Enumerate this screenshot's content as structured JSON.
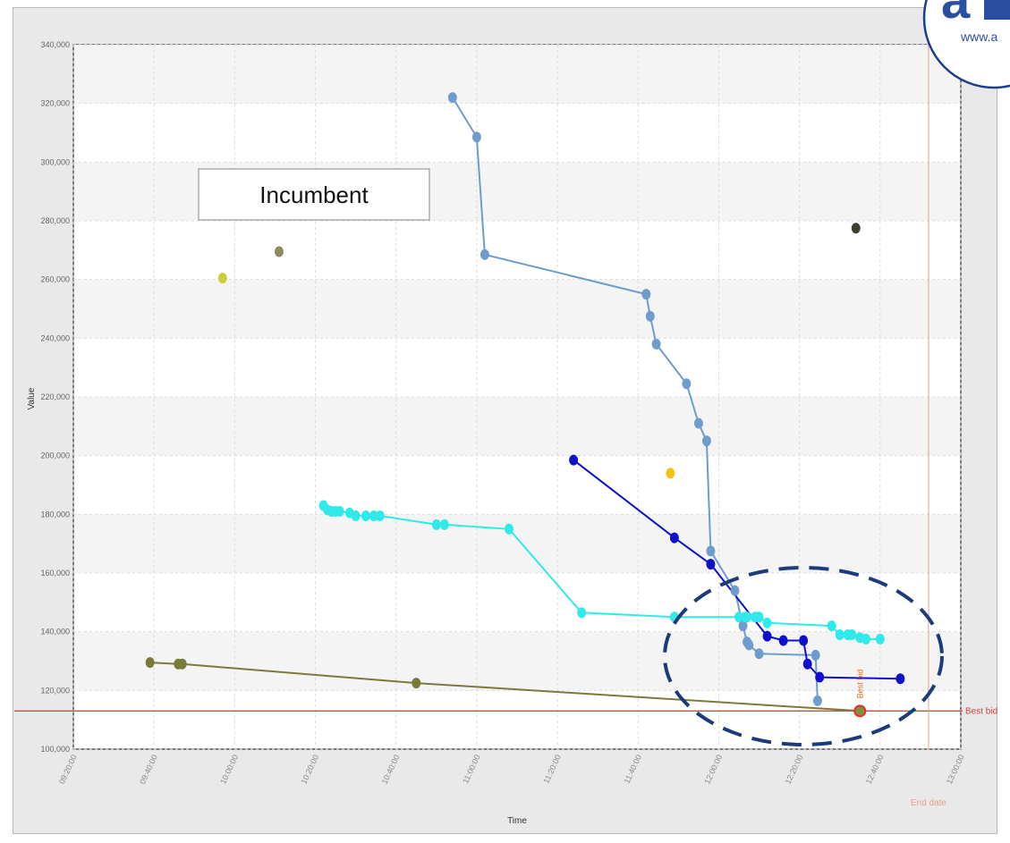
{
  "chart_data": {
    "type": "scatter",
    "xlabel": "Time",
    "ylabel": "Value",
    "ylim": [
      100000,
      340000
    ],
    "xlim": [
      "09:20:00",
      "13:00:00"
    ],
    "x_ticks": [
      "09:20:00",
      "09:40:00",
      "10:00:00",
      "10:20:00",
      "10:40:00",
      "11:00:00",
      "11:20:00",
      "11:40:00",
      "12:00:00",
      "12:20:00",
      "12:40:00",
      "13:00:00"
    ],
    "y_ticks": [
      "100,000",
      "120,000",
      "140,000",
      "160,000",
      "180,000",
      "200,000",
      "220,000",
      "240,000",
      "260,000",
      "280,000",
      "300,000",
      "320,000",
      "340,000"
    ],
    "y_tick_values": [
      100000,
      120000,
      140000,
      160000,
      180000,
      200000,
      220000,
      240000,
      260000,
      280000,
      300000,
      320000,
      340000
    ],
    "grid": true,
    "best_bid": {
      "label": "Best bid",
      "value": 113000,
      "color": "#e04040"
    },
    "end_date": {
      "label": "End date",
      "time": "12:52:00",
      "color": "#e3a090"
    },
    "best_bid_marker": {
      "label": "Best bid",
      "time": "12:35:00",
      "value": 113000
    },
    "series": [
      {
        "color": "#6f9ccd",
        "points": [
          [
            "10:54:00",
            322000
          ],
          [
            "11:00:00",
            308500
          ],
          [
            "11:02:00",
            268500
          ],
          [
            "11:42:00",
            255000
          ],
          [
            "11:43:00",
            247500
          ],
          [
            "11:44:30",
            238000
          ],
          [
            "11:52:00",
            224500
          ],
          [
            "11:55:00",
            211000
          ],
          [
            "11:57:00",
            205000
          ],
          [
            "11:58:00",
            167500
          ],
          [
            "12:04:00",
            154000
          ],
          [
            "12:06:00",
            142000
          ],
          [
            "12:07:00",
            136500
          ],
          [
            "12:07:30",
            135500
          ],
          [
            "12:10:00",
            132500
          ],
          [
            "12:24:00",
            132000
          ],
          [
            "12:24:30",
            116500
          ]
        ]
      },
      {
        "color": "#1010cc",
        "points": [
          [
            "11:24:00",
            198500
          ],
          [
            "11:49:00",
            172000
          ],
          [
            "11:58:00",
            163000
          ],
          [
            "12:12:00",
            138500
          ],
          [
            "12:16:00",
            137000
          ],
          [
            "12:21:00",
            137000
          ],
          [
            "12:22:00",
            129000
          ],
          [
            "12:25:00",
            124500
          ],
          [
            "12:45:00",
            124000
          ]
        ]
      },
      {
        "color": "#30eaea",
        "points": [
          [
            "10:22:00",
            183000
          ],
          [
            "10:23:00",
            181500
          ],
          [
            "10:24:00",
            181000
          ],
          [
            "10:25:00",
            181000
          ],
          [
            "10:26:00",
            181000
          ],
          [
            "10:28:30",
            180500
          ],
          [
            "10:30:00",
            179500
          ],
          [
            "10:32:30",
            179500
          ],
          [
            "10:34:30",
            179500
          ],
          [
            "10:36:00",
            179500
          ],
          [
            "10:50:00",
            176500
          ],
          [
            "10:52:00",
            176500
          ],
          [
            "11:08:00",
            175000
          ],
          [
            "11:26:00",
            146500
          ],
          [
            "11:49:00",
            145000
          ],
          [
            "12:05:00",
            145000
          ],
          [
            "12:06:30",
            145000
          ],
          [
            "12:07:00",
            145000
          ],
          [
            "12:09:00",
            145000
          ],
          [
            "12:10:00",
            145000
          ],
          [
            "12:12:00",
            143000
          ],
          [
            "12:28:00",
            142000
          ],
          [
            "12:30:00",
            139000
          ],
          [
            "12:32:00",
            139000
          ],
          [
            "12:33:00",
            139000
          ],
          [
            "12:35:00",
            138000
          ],
          [
            "12:36:30",
            137500
          ],
          [
            "12:40:00",
            137500
          ]
        ]
      },
      {
        "color": "#7a7a3c",
        "points": [
          [
            "09:39:00",
            129500
          ],
          [
            "09:46:00",
            129000
          ],
          [
            "09:47:00",
            129000
          ],
          [
            "10:45:00",
            122500
          ],
          [
            "12:35:00",
            113000
          ]
        ]
      }
    ],
    "isolated_points": [
      {
        "color": "#cccc3c",
        "time": "09:57:00",
        "value": 260500
      },
      {
        "color": "#8c8c5c",
        "time": "10:11:00",
        "value": 269500
      },
      {
        "color": "#f2c318",
        "time": "11:48:00",
        "value": 194000
      },
      {
        "color": "#3c4030",
        "time": "12:34:00",
        "value": 277500
      }
    ]
  },
  "annotation": {
    "label": "Incumbent"
  },
  "highlight": {
    "shape": "dashed-ellipse",
    "color": "#1d3a7a"
  }
}
